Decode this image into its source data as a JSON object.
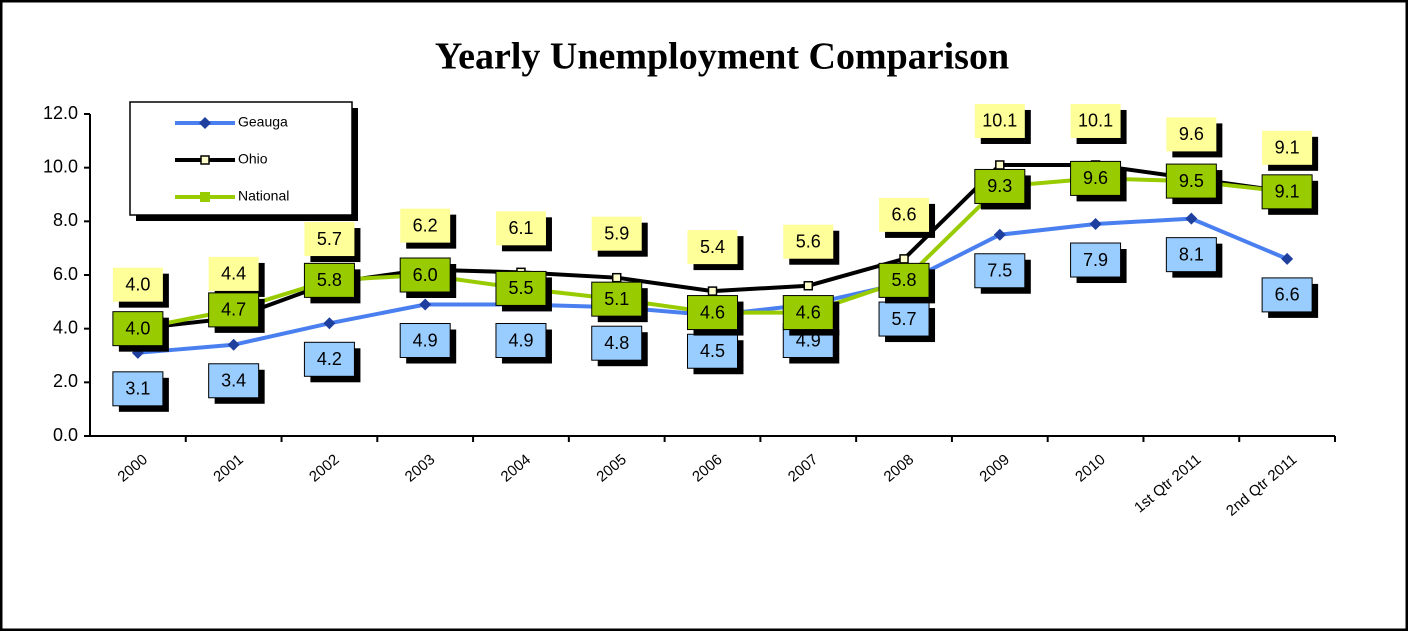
{
  "chart_data": {
    "type": "line",
    "title": "Yearly Unemployment Comparison",
    "categories": [
      "2000",
      "2001",
      "2002",
      "2003",
      "2004",
      "2005",
      "2006",
      "2007",
      "2008",
      "2009",
      "2010",
      "1st Qtr 2011",
      "2nd Qtr 2011"
    ],
    "series": [
      {
        "name": "Geauga",
        "color": "#4a7ff0",
        "values": [
          3.1,
          3.4,
          4.2,
          4.9,
          4.9,
          4.8,
          4.5,
          4.9,
          5.7,
          7.5,
          7.9,
          8.1,
          6.6
        ],
        "value_labels": [
          "3.1",
          "3.4",
          "4.2",
          "4.9",
          "4.9",
          "4.8",
          "4.5",
          "4.9",
          "5.7",
          "7.5",
          "7.9",
          "8.1",
          "6.6"
        ]
      },
      {
        "name": "Ohio",
        "color": "#000000",
        "values": [
          4.0,
          4.4,
          5.7,
          6.2,
          6.1,
          5.9,
          5.4,
          5.6,
          6.6,
          10.1,
          10.1,
          9.6,
          9.1
        ],
        "value_labels": [
          "4.0",
          "4.4",
          "5.7",
          "6.2",
          "6.1",
          "5.9",
          "5.4",
          "5.6",
          "6.6",
          "10.1",
          "10.1",
          "9.6",
          "9.1"
        ]
      },
      {
        "name": "National",
        "color": "#99cc00",
        "values": [
          4.0,
          4.7,
          5.8,
          6.0,
          5.5,
          5.1,
          4.6,
          4.6,
          5.8,
          9.3,
          9.6,
          9.5,
          9.1
        ],
        "value_labels": [
          "4.0",
          "4.7",
          "5.8",
          "6.0",
          "5.5",
          "5.1",
          "4.6",
          "4.6",
          "5.8",
          "9.3",
          "9.6",
          "9.5",
          "9.1"
        ]
      }
    ],
    "ylim": [
      0,
      12
    ],
    "yticks": [
      {
        "value": 0,
        "label": "0.0"
      },
      {
        "value": 2,
        "label": "2.0"
      },
      {
        "value": 4,
        "label": "4.0"
      },
      {
        "value": 6,
        "label": "6.0"
      },
      {
        "value": 8,
        "label": "8.0"
      },
      {
        "value": 10,
        "label": "10.0"
      },
      {
        "value": 12,
        "label": "12.0"
      }
    ],
    "legend": "upper left"
  }
}
